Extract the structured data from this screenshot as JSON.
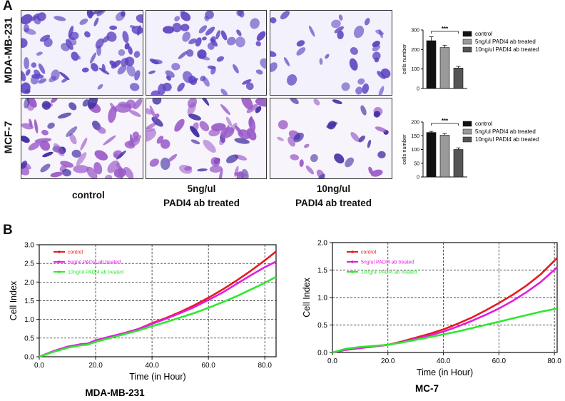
{
  "panel_a": {
    "letter": "A",
    "row_labels": [
      "MDA-MB-231",
      "MCF-7"
    ],
    "column_labels": [
      [
        "control"
      ],
      [
        "5ng/ul",
        "PADI4 ab treated"
      ],
      [
        "10ng/ul",
        "PADI4 ab treated"
      ]
    ],
    "stain_colors": {
      "mda": "#5a3fc0",
      "mcf": "#9a5bc8",
      "mcf_dark": "#3b2aa0"
    }
  },
  "panel_b": {
    "letter": "B"
  },
  "chart_data": [
    {
      "id": "bar-mda",
      "type": "bar",
      "ylabel": "cells number",
      "ylim": [
        0,
        300
      ],
      "yticks": [
        0,
        100,
        200,
        300
      ],
      "categories": [
        "control",
        "5ng/ul PADI4 ab treated",
        "10ng/ul PADI4 ab treated"
      ],
      "values": [
        245,
        210,
        105
      ],
      "errors": [
        20,
        12,
        8
      ],
      "colors": [
        "#111111",
        "#9a9a9a",
        "#555555"
      ],
      "significance": "***",
      "legend": [
        "control",
        "5ng/ul PADI4 ab treated",
        "10ng/ul PADI4 ab treated"
      ]
    },
    {
      "id": "bar-mcf",
      "type": "bar",
      "ylabel": "cells number",
      "ylim": [
        0,
        200
      ],
      "yticks": [
        0,
        50,
        100,
        150,
        200
      ],
      "categories": [
        "control",
        "5ng/ul PADI4 ab treated",
        "10ng/ul PADI4 ab treated"
      ],
      "values": [
        162,
        152,
        100
      ],
      "errors": [
        4,
        6,
        6
      ],
      "colors": [
        "#111111",
        "#9a9a9a",
        "#555555"
      ],
      "significance": "***",
      "legend": [
        "control",
        "5ng/ul PADI4 ab treated",
        "10ng/ul PADI4 ab treated"
      ]
    },
    {
      "id": "line-mda",
      "type": "line",
      "title": "MDA-MB-231",
      "xlabel": "Time (in Hour)",
      "ylabel": "Cell Index",
      "xlim": [
        0,
        84
      ],
      "ylim": [
        0,
        3.0
      ],
      "xticks": [
        0,
        20,
        40,
        60,
        80
      ],
      "xticklabels": [
        "0.0",
        "20.0",
        "40.0",
        "60.0",
        "80.0"
      ],
      "yticks": [
        0,
        0.5,
        1.0,
        1.5,
        2.0,
        2.5,
        3.0
      ],
      "yticklabels": [
        "0.0",
        "0.5",
        "1.0",
        "1.5",
        "2.0",
        "2.5",
        "3.0"
      ],
      "series": [
        {
          "name": "control",
          "color": "#e8191e",
          "x": [
            0,
            5,
            10,
            15,
            17,
            20,
            25,
            30,
            35,
            40,
            45,
            50,
            55,
            60,
            65,
            70,
            75,
            80,
            84
          ],
          "y": [
            0,
            0.14,
            0.25,
            0.32,
            0.33,
            0.42,
            0.53,
            0.63,
            0.74,
            0.9,
            1.04,
            1.2,
            1.38,
            1.58,
            1.8,
            2.04,
            2.3,
            2.58,
            2.82
          ]
        },
        {
          "name": "5ng/ul PADI4 ab treated",
          "color": "#e01ee0",
          "x": [
            0,
            5,
            10,
            15,
            17,
            20,
            25,
            30,
            35,
            40,
            45,
            50,
            55,
            60,
            65,
            70,
            75,
            80,
            84
          ],
          "y": [
            0,
            0.15,
            0.27,
            0.34,
            0.35,
            0.44,
            0.54,
            0.63,
            0.74,
            0.88,
            1.02,
            1.17,
            1.33,
            1.52,
            1.72,
            1.95,
            2.18,
            2.4,
            2.55
          ]
        },
        {
          "name": "10ng/ul PADI4 ab treated",
          "color": "#2ee82e",
          "x": [
            0,
            5,
            10,
            15,
            17,
            20,
            25,
            30,
            35,
            40,
            45,
            50,
            55,
            60,
            65,
            70,
            75,
            80,
            84
          ],
          "y": [
            0,
            0.13,
            0.24,
            0.31,
            0.32,
            0.4,
            0.5,
            0.6,
            0.7,
            0.82,
            0.93,
            1.05,
            1.17,
            1.31,
            1.46,
            1.62,
            1.8,
            1.98,
            2.14
          ]
        }
      ]
    },
    {
      "id": "line-mc7",
      "type": "line",
      "title": "MC-7",
      "xlabel": "Time (in Hour)",
      "ylabel": "Cell Index",
      "xlim": [
        0,
        81
      ],
      "ylim": [
        0,
        2.0
      ],
      "xticks": [
        0,
        20,
        40,
        60,
        80
      ],
      "xticklabels": [
        "0.0",
        "20.0",
        "40.0",
        "60.0",
        "80.0"
      ],
      "yticks": [
        0,
        0.5,
        1.0,
        1.5,
        2.0
      ],
      "yticklabels": [
        "0.0",
        "0.5",
        "1.0",
        "1.5",
        "2.0"
      ],
      "series": [
        {
          "name": "control",
          "color": "#e8191e",
          "x": [
            0,
            5,
            10,
            15,
            20,
            25,
            30,
            35,
            40,
            45,
            50,
            55,
            60,
            65,
            70,
            75,
            81
          ],
          "y": [
            0,
            0.05,
            0.08,
            0.11,
            0.14,
            0.2,
            0.27,
            0.34,
            0.42,
            0.52,
            0.63,
            0.76,
            0.9,
            1.05,
            1.22,
            1.42,
            1.72
          ]
        },
        {
          "name": "5ng/ul PADI4 ab treated",
          "color": "#e01ee0",
          "x": [
            0,
            5,
            10,
            15,
            20,
            25,
            30,
            35,
            40,
            45,
            50,
            55,
            60,
            65,
            70,
            75,
            81
          ],
          "y": [
            0,
            0.05,
            0.08,
            0.11,
            0.14,
            0.19,
            0.25,
            0.31,
            0.38,
            0.47,
            0.57,
            0.68,
            0.8,
            0.94,
            1.1,
            1.28,
            1.55
          ]
        },
        {
          "name": "10ng/ul PADI4 ab treated",
          "color": "#2ee82e",
          "x": [
            0,
            5,
            10,
            15,
            20,
            25,
            30,
            35,
            40,
            45,
            50,
            55,
            60,
            65,
            70,
            75,
            81
          ],
          "y": [
            0,
            0.07,
            0.1,
            0.12,
            0.14,
            0.18,
            0.23,
            0.28,
            0.33,
            0.38,
            0.44,
            0.5,
            0.56,
            0.62,
            0.68,
            0.74,
            0.8
          ]
        }
      ]
    }
  ]
}
